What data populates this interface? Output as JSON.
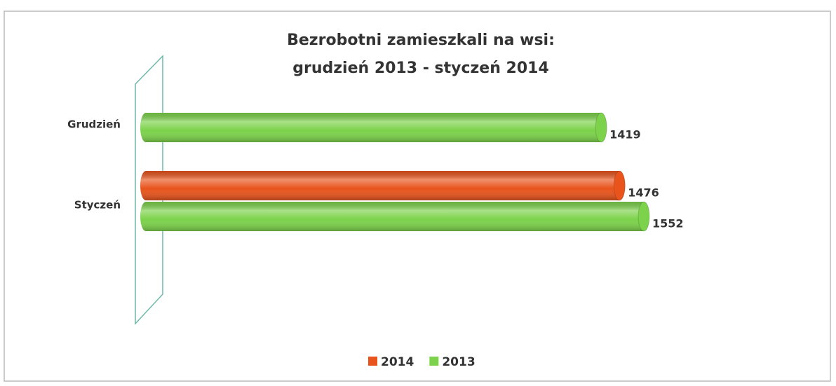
{
  "chart_data": {
    "type": "bar",
    "orientation": "horizontal",
    "title": "Bezrobotni zamieszkali na wsi:",
    "subtitle": "grudzień 2013 - styczeń 2014",
    "categories": [
      "Grudzień",
      "Styczeń"
    ],
    "series": [
      {
        "name": "2014",
        "color": "#e8541c",
        "values": [
          null,
          1476
        ]
      },
      {
        "name": "2013",
        "color": "#7cd24a",
        "values": [
          1419,
          1552
        ]
      }
    ],
    "legend": "bottom"
  }
}
